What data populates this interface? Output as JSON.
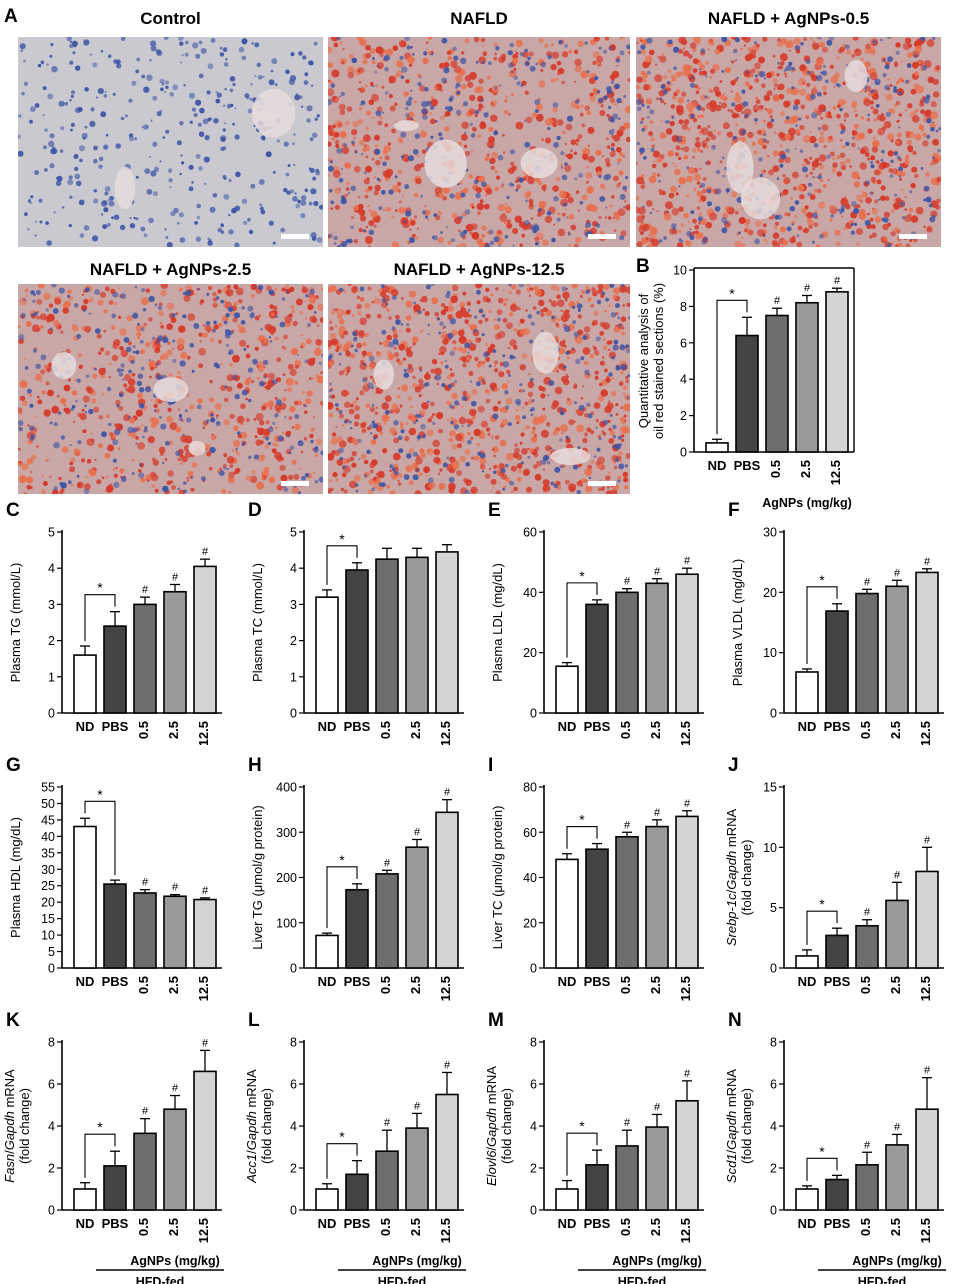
{
  "figure": {
    "panel_a": {
      "letter": "A",
      "images": [
        {
          "title": "Control",
          "stain": "control"
        },
        {
          "title": "NAFLD",
          "stain": "nafld"
        },
        {
          "title": "NAFLD + AgNPs-0.5",
          "stain": "heavy"
        },
        {
          "title": "NAFLD + AgNPs-2.5",
          "stain": "nafld"
        },
        {
          "title": "NAFLD + AgNPs-12.5",
          "stain": "heavy"
        }
      ]
    },
    "colors": {
      "white_bar": "#ffffff",
      "pbs": "#444444",
      "dose_0_5": "#6e6e6e",
      "dose_2_5": "#9a9a9a",
      "dose_12_5": "#d4d4d4",
      "stain_red": "#d63a2a",
      "stain_blue": "#3f55a6"
    }
  },
  "chart_data": [
    {
      "letter": "B",
      "type": "bar",
      "categories": [
        "ND",
        "PBS",
        "0.5",
        "2.5",
        "12.5"
      ],
      "values": [
        0.5,
        6.4,
        7.5,
        8.2,
        8.8
      ],
      "errors": [
        0.2,
        1.0,
        0.4,
        0.4,
        0.2
      ],
      "ylabel": "Quantitative analysis of\noil red stained sections (%)",
      "ylim": [
        0,
        10
      ],
      "yticks": [
        0,
        2,
        4,
        6,
        8,
        10
      ],
      "sub_label": "AgNPs (mg/kg)",
      "group_label": "HFD-fed",
      "star": "*",
      "hashes": [
        "",
        "",
        "#",
        "#",
        "#"
      ]
    },
    {
      "letter": "C",
      "type": "bar",
      "categories": [
        "ND",
        "PBS",
        "0.5",
        "2.5",
        "12.5"
      ],
      "values": [
        1.6,
        2.4,
        3.0,
        3.35,
        4.05
      ],
      "errors": [
        0.25,
        0.4,
        0.2,
        0.2,
        0.2
      ],
      "ylabel": "Plasma TG (mmol/L)",
      "ylim": [
        0,
        5
      ],
      "yticks": [
        0,
        1,
        2,
        3,
        4,
        5
      ],
      "sub_label": "AgNPs (mg/kg)",
      "group_label": "HFD-fed",
      "star": "*",
      "hashes": [
        "",
        "",
        "#",
        "#",
        "#"
      ]
    },
    {
      "letter": "D",
      "type": "bar",
      "categories": [
        "ND",
        "PBS",
        "0.5",
        "2.5",
        "12.5"
      ],
      "values": [
        3.2,
        3.95,
        4.25,
        4.3,
        4.45
      ],
      "errors": [
        0.2,
        0.2,
        0.3,
        0.25,
        0.2
      ],
      "ylabel": "Plasma TC (mmol/L)",
      "ylim": [
        0,
        5
      ],
      "yticks": [
        0,
        1,
        2,
        3,
        4,
        5
      ],
      "sub_label": "AgNPs (mg/kg)",
      "group_label": "HFD-fed",
      "star": "*",
      "hashes": [
        "",
        "",
        "",
        "",
        ""
      ]
    },
    {
      "letter": "E",
      "type": "bar",
      "categories": [
        "ND",
        "PBS",
        "0.5",
        "2.5",
        "12.5"
      ],
      "values": [
        15.5,
        36,
        40,
        43,
        46
      ],
      "errors": [
        1.2,
        1.5,
        1.2,
        1.5,
        2.0
      ],
      "ylabel": "Plasma LDL (mg/dL)",
      "ylim": [
        0,
        60
      ],
      "yticks": [
        0,
        20,
        40,
        60
      ],
      "sub_label": "AgNPs (mg/kg)",
      "group_label": "HFD-fed",
      "star": "*",
      "hashes": [
        "",
        "",
        "#",
        "#",
        "#"
      ]
    },
    {
      "letter": "F",
      "type": "bar",
      "categories": [
        "ND",
        "PBS",
        "0.5",
        "2.5",
        "12.5"
      ],
      "values": [
        6.8,
        16.9,
        19.8,
        21.0,
        23.3
      ],
      "errors": [
        0.5,
        1.2,
        0.7,
        1.0,
        0.6
      ],
      "ylabel": "Plasma VLDL (mg/dL)",
      "ylim": [
        0,
        30
      ],
      "yticks": [
        0,
        10,
        20,
        30
      ],
      "sub_label": "AgNPs (mg/kg)",
      "group_label": "HFD-fed",
      "star": "*",
      "hashes": [
        "",
        "",
        "#",
        "#",
        "#"
      ]
    },
    {
      "letter": "G",
      "type": "bar",
      "categories": [
        "ND",
        "PBS",
        "0.5",
        "2.5",
        "12.5"
      ],
      "values": [
        43,
        25.5,
        22.8,
        21.8,
        20.8
      ],
      "errors": [
        2.5,
        1.2,
        1.0,
        0.5,
        0.5
      ],
      "ylabel": "Plasma HDL (mg/dL)",
      "ylim": [
        0,
        55
      ],
      "yticks": [
        0,
        5,
        10,
        15,
        20,
        25,
        30,
        35,
        40,
        45,
        50,
        55
      ],
      "sub_label": "AgNPs (mg/kg)",
      "group_label": "HFD-fed",
      "star": "*",
      "hashes": [
        "",
        "",
        "#",
        "#",
        "#"
      ]
    },
    {
      "letter": "H",
      "type": "bar",
      "categories": [
        "ND",
        "PBS",
        "0.5",
        "2.5",
        "12.5"
      ],
      "values": [
        72,
        173,
        208,
        267,
        344
      ],
      "errors": [
        5,
        13,
        8,
        17,
        28
      ],
      "ylabel": "Liver TG (μmol/g protein)",
      "ylim": [
        0,
        400
      ],
      "yticks": [
        0,
        100,
        200,
        300,
        400
      ],
      "sub_label": "AgNPs (mg/kg)",
      "group_label": "HFD-fed",
      "star": "*",
      "hashes": [
        "",
        "",
        "#",
        "#",
        "#"
      ]
    },
    {
      "letter": "I",
      "type": "bar",
      "categories": [
        "ND",
        "PBS",
        "0.5",
        "2.5",
        "12.5"
      ],
      "values": [
        48,
        52.5,
        58,
        62.5,
        67
      ],
      "errors": [
        2.5,
        2.5,
        2,
        3,
        2.5
      ],
      "ylabel": "Liver TC (μmol/g protein)",
      "ylim": [
        0,
        80
      ],
      "yticks": [
        0,
        20,
        40,
        60,
        80
      ],
      "sub_label": "AgNPs (mg/kg)",
      "group_label": "HFD-fed",
      "star": "*",
      "hashes": [
        "",
        "",
        "#",
        "#",
        "#"
      ]
    },
    {
      "letter": "J",
      "type": "bar",
      "categories": [
        "ND",
        "PBS",
        "0.5",
        "2.5",
        "12.5"
      ],
      "values": [
        1.0,
        2.7,
        3.5,
        5.6,
        8.0
      ],
      "errors": [
        0.5,
        0.6,
        0.5,
        1.5,
        2.0
      ],
      "ylabel": "Srebp-1c/Gapdh mRNA\n(fold change)",
      "ylim": [
        0,
        15
      ],
      "yticks": [
        0,
        5,
        10,
        15
      ],
      "sub_label": "AgNPs (mg/kg)",
      "group_label": "HFD-fed",
      "star": "*",
      "hashes": [
        "",
        "",
        "#",
        "#",
        "#"
      ]
    },
    {
      "letter": "K",
      "type": "bar",
      "categories": [
        "ND",
        "PBS",
        "0.5",
        "2.5",
        "12.5"
      ],
      "values": [
        1.0,
        2.1,
        3.65,
        4.8,
        6.6
      ],
      "errors": [
        0.3,
        0.7,
        0.7,
        0.65,
        1.0
      ],
      "ylabel": "Fasn/Gapdh mRNA\n(fold change)",
      "ylim": [
        0,
        8
      ],
      "yticks": [
        0,
        2,
        4,
        6,
        8
      ],
      "sub_label": "AgNPs (mg/kg)",
      "group_label": "HFD-fed",
      "star": "*",
      "hashes": [
        "",
        "",
        "#",
        "#",
        "#"
      ]
    },
    {
      "letter": "L",
      "type": "bar",
      "categories": [
        "ND",
        "PBS",
        "0.5",
        "2.5",
        "12.5"
      ],
      "values": [
        1.0,
        1.7,
        2.8,
        3.9,
        5.5
      ],
      "errors": [
        0.25,
        0.65,
        1.0,
        0.7,
        1.05
      ],
      "ylabel": "Acc1/Gapdh mRNA\n(fold change)",
      "ylim": [
        0,
        8
      ],
      "yticks": [
        0,
        2,
        4,
        6,
        8
      ],
      "sub_label": "AgNPs (mg/kg)",
      "group_label": "HFD-fed",
      "star": "*",
      "hashes": [
        "",
        "",
        "#",
        "#",
        "#"
      ]
    },
    {
      "letter": "M",
      "type": "bar",
      "categories": [
        "ND",
        "PBS",
        "0.5",
        "2.5",
        "12.5"
      ],
      "values": [
        1.0,
        2.15,
        3.05,
        3.95,
        5.2
      ],
      "errors": [
        0.4,
        0.7,
        0.75,
        0.6,
        0.95
      ],
      "ylabel": "Elovl6/Gapdh mRNA\n(fold change)",
      "ylim": [
        0,
        8
      ],
      "yticks": [
        0,
        2,
        4,
        6,
        8
      ],
      "sub_label": "AgNPs (mg/kg)",
      "group_label": "HFD-fed",
      "star": "*",
      "hashes": [
        "",
        "",
        "#",
        "#",
        "#"
      ]
    },
    {
      "letter": "N",
      "type": "bar",
      "categories": [
        "ND",
        "PBS",
        "0.5",
        "2.5",
        "12.5"
      ],
      "values": [
        1.0,
        1.45,
        2.15,
        3.1,
        4.8
      ],
      "errors": [
        0.15,
        0.2,
        0.6,
        0.5,
        1.5
      ],
      "ylabel": "Scd1/Gapdh mRNA\n(fold change)",
      "ylim": [
        0,
        8
      ],
      "yticks": [
        0,
        2,
        4,
        6,
        8
      ],
      "sub_label": "AgNPs (mg/kg)",
      "group_label": "HFD-fed",
      "star": "*",
      "hashes": [
        "",
        "",
        "#",
        "#",
        "#"
      ]
    }
  ]
}
